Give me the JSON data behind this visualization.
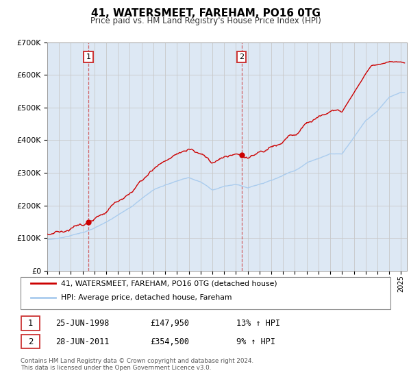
{
  "title": "41, WATERSMEET, FAREHAM, PO16 0TG",
  "subtitle": "Price paid vs. HM Land Registry's House Price Index (HPI)",
  "legend_entry1": "41, WATERSMEET, FAREHAM, PO16 0TG (detached house)",
  "legend_entry2": "HPI: Average price, detached house, Fareham",
  "sale1_label": "1",
  "sale1_date": "25-JUN-1998",
  "sale1_price": "£147,950",
  "sale1_hpi": "13% ↑ HPI",
  "sale2_label": "2",
  "sale2_date": "28-JUN-2011",
  "sale2_price": "£354,500",
  "sale2_hpi": "9% ↑ HPI",
  "footer": "Contains HM Land Registry data © Crown copyright and database right 2024.\nThis data is licensed under the Open Government Licence v3.0.",
  "ylim": [
    0,
    700000
  ],
  "xlim_start": 1995.0,
  "xlim_end": 2025.5,
  "red_color": "#cc0000",
  "blue_color": "#aaccee",
  "bg_color": "#dde8f4",
  "plot_bg": "#ffffff",
  "grid_color": "#c8c8c8",
  "box_color": "#cc3333",
  "sale1_year": 1998.48,
  "sale1_price_val": 147950,
  "sale2_year": 2011.48,
  "sale2_price_val": 354500
}
